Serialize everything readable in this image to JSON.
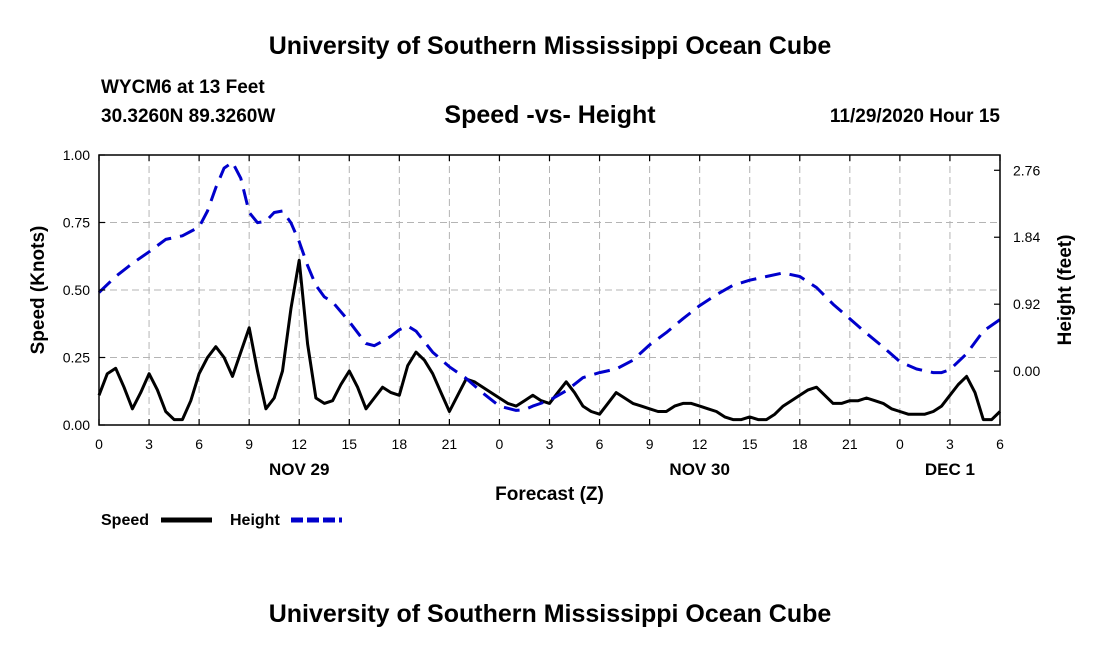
{
  "header": {
    "title": "University of Southern Mississippi Ocean Cube",
    "station": "WYCM6 at 13 Feet",
    "coords": "30.3260N 89.3260W",
    "timestamp": "11/29/2020 Hour 15",
    "footer_title": "University of Southern Mississippi Ocean Cube"
  },
  "chart_data": {
    "type": "line",
    "title": "Speed -vs- Height",
    "xlabel": "Forecast (Z)",
    "ylabel": "Speed (Knots)",
    "y2label": "Height (feet)",
    "xlim": [
      0,
      54
    ],
    "ylim": [
      0,
      1
    ],
    "y2lim": [
      -0.74,
      2.97
    ],
    "x_ticks": [
      {
        "x": 0,
        "label": "0"
      },
      {
        "x": 3,
        "label": "3"
      },
      {
        "x": 6,
        "label": "6"
      },
      {
        "x": 9,
        "label": "9"
      },
      {
        "x": 12,
        "label": "12"
      },
      {
        "x": 15,
        "label": "15"
      },
      {
        "x": 18,
        "label": "18"
      },
      {
        "x": 21,
        "label": "21"
      },
      {
        "x": 24,
        "label": "0"
      },
      {
        "x": 27,
        "label": "3"
      },
      {
        "x": 30,
        "label": "6"
      },
      {
        "x": 33,
        "label": "9"
      },
      {
        "x": 36,
        "label": "12"
      },
      {
        "x": 39,
        "label": "15"
      },
      {
        "x": 42,
        "label": "18"
      },
      {
        "x": 45,
        "label": "21"
      },
      {
        "x": 48,
        "label": "0"
      },
      {
        "x": 51,
        "label": "3"
      },
      {
        "x": 54,
        "label": "6"
      }
    ],
    "date_labels": [
      {
        "x": 12,
        "label": "NOV 29"
      },
      {
        "x": 36,
        "label": "NOV 30"
      },
      {
        "x": 51,
        "label": "DEC 1"
      }
    ],
    "y_ticks": [
      "0.00",
      "0.25",
      "0.50",
      "0.75",
      "1.00"
    ],
    "y2_ticks": [
      "0.00",
      "0.92",
      "1.84",
      "2.76"
    ],
    "series": [
      {
        "name": "Speed",
        "axis": "left",
        "color": "#000000",
        "style": "solid",
        "x": [
          0,
          0.5,
          1,
          1.5,
          2,
          2.5,
          3,
          3.5,
          4,
          4.5,
          5,
          5.5,
          6,
          6.5,
          7,
          7.5,
          8,
          8.5,
          9,
          9.5,
          10,
          10.5,
          11,
          11.5,
          12,
          12.5,
          13,
          13.5,
          14,
          14.5,
          15,
          15.5,
          16,
          16.5,
          17,
          17.5,
          18,
          18.5,
          19,
          19.5,
          20,
          20.5,
          21,
          21.5,
          22,
          22.5,
          23,
          23.5,
          24,
          24.5,
          25,
          25.5,
          26,
          26.5,
          27,
          27.5,
          28,
          28.5,
          29,
          29.5,
          30,
          30.5,
          31,
          31.5,
          32,
          32.5,
          33,
          33.5,
          34,
          34.5,
          35,
          35.5,
          36,
          36.5,
          37,
          37.5,
          38,
          38.5,
          39,
          39.5,
          40,
          40.5,
          41,
          41.5,
          42,
          42.5,
          43,
          43.5,
          44,
          44.5,
          45,
          45.5,
          46,
          46.5,
          47,
          47.5,
          48,
          48.5,
          49,
          49.5,
          50,
          50.5,
          51,
          51.5,
          52,
          52.5,
          53,
          53.5,
          54
        ],
        "values": [
          0.11,
          0.19,
          0.21,
          0.14,
          0.06,
          0.12,
          0.19,
          0.13,
          0.05,
          0.02,
          0.02,
          0.09,
          0.19,
          0.25,
          0.29,
          0.25,
          0.18,
          0.27,
          0.36,
          0.2,
          0.06,
          0.1,
          0.2,
          0.43,
          0.61,
          0.3,
          0.1,
          0.08,
          0.09,
          0.15,
          0.2,
          0.14,
          0.06,
          0.1,
          0.14,
          0.12,
          0.11,
          0.22,
          0.27,
          0.24,
          0.19,
          0.12,
          0.05,
          0.11,
          0.17,
          0.16,
          0.14,
          0.12,
          0.1,
          0.08,
          0.07,
          0.09,
          0.11,
          0.09,
          0.08,
          0.12,
          0.16,
          0.12,
          0.07,
          0.05,
          0.04,
          0.08,
          0.12,
          0.1,
          0.08,
          0.07,
          0.06,
          0.05,
          0.05,
          0.07,
          0.08,
          0.08,
          0.07,
          0.06,
          0.05,
          0.03,
          0.02,
          0.02,
          0.03,
          0.02,
          0.02,
          0.04,
          0.07,
          0.09,
          0.11,
          0.13,
          0.14,
          0.11,
          0.08,
          0.08,
          0.09,
          0.09,
          0.1,
          0.09,
          0.08,
          0.06,
          0.05,
          0.04,
          0.04,
          0.04,
          0.05,
          0.07,
          0.11,
          0.15,
          0.18,
          0.12,
          0.02,
          0.02,
          0.05
        ]
      },
      {
        "name": "Height",
        "axis": "right",
        "color": "#0000cc",
        "style": "dashed",
        "x": [
          0,
          1,
          2,
          3,
          4,
          5,
          6,
          6.5,
          7,
          7.5,
          8,
          8.5,
          9,
          9.5,
          10,
          10.5,
          11,
          11.5,
          12,
          12.5,
          13,
          13.5,
          14,
          15,
          16,
          16.5,
          17,
          17.5,
          18,
          18.5,
          19,
          20,
          21,
          22,
          23,
          24,
          25,
          25.5,
          26,
          27,
          28,
          29,
          30,
          31,
          32,
          33,
          34,
          35,
          36,
          37,
          38,
          39,
          40,
          41,
          42,
          43,
          44,
          45,
          46,
          47,
          48,
          49,
          50,
          50.5,
          51,
          52,
          53,
          54
        ],
        "values": [
          1.08,
          1.3,
          1.48,
          1.64,
          1.81,
          1.86,
          1.98,
          2.2,
          2.52,
          2.79,
          2.87,
          2.65,
          2.18,
          2.04,
          2.06,
          2.18,
          2.2,
          2.04,
          1.78,
          1.45,
          1.18,
          1.02,
          0.95,
          0.68,
          0.38,
          0.35,
          0.41,
          0.48,
          0.57,
          0.62,
          0.55,
          0.26,
          0.06,
          -0.1,
          -0.3,
          -0.48,
          -0.54,
          -0.53,
          -0.48,
          -0.4,
          -0.27,
          -0.09,
          -0.02,
          0.03,
          0.15,
          0.36,
          0.53,
          0.72,
          0.9,
          1.05,
          1.18,
          1.25,
          1.3,
          1.35,
          1.3,
          1.15,
          0.92,
          0.72,
          0.52,
          0.33,
          0.13,
          0.03,
          -0.02,
          -0.02,
          0.02,
          0.24,
          0.55,
          0.71
        ]
      }
    ],
    "legend": [
      {
        "name": "Speed",
        "color": "#000000",
        "style": "solid"
      },
      {
        "name": "Height",
        "color": "#0000cc",
        "style": "dashed"
      }
    ],
    "legend_position": "bottom-left",
    "grid": true
  }
}
